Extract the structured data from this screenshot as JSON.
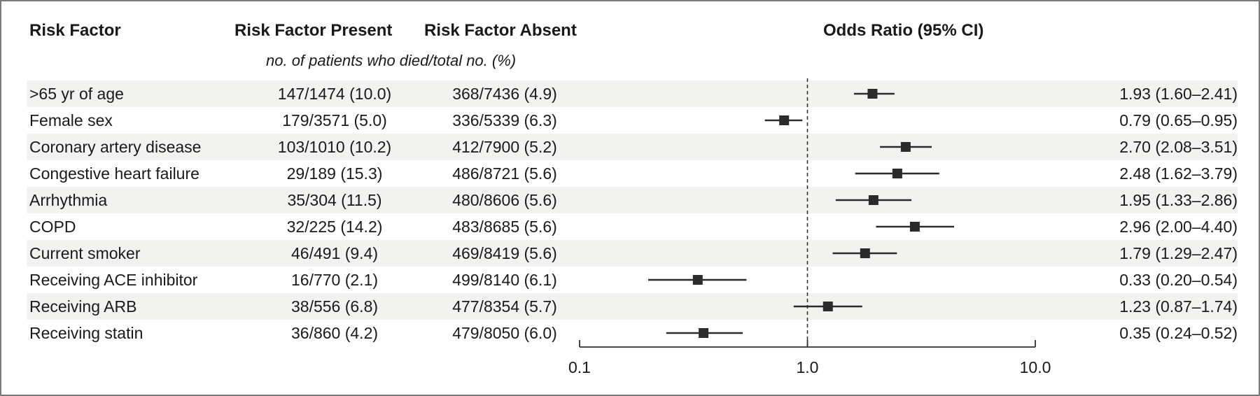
{
  "headers": {
    "risk_factor": "Risk Factor",
    "present": "Risk Factor Present",
    "absent": "Risk Factor Absent",
    "odds_ratio": "Odds Ratio (95% CI)",
    "subheader": "no. of patients who died/total no. (%)"
  },
  "rows": [
    {
      "name": ">65 yr of age",
      "present": "147/1474 (10.0)",
      "absent": "368/7436 (4.9)",
      "or_text": "1.93 (1.60–2.41)"
    },
    {
      "name": "Female sex",
      "present": "179/3571 (5.0)",
      "absent": "336/5339 (6.3)",
      "or_text": "0.79 (0.65–0.95)"
    },
    {
      "name": "Coronary artery disease",
      "present": "103/1010 (10.2)",
      "absent": "412/7900 (5.2)",
      "or_text": "2.70 (2.08–3.51)"
    },
    {
      "name": "Congestive heart failure",
      "present": "29/189 (15.3)",
      "absent": "486/8721 (5.6)",
      "or_text": "2.48 (1.62–3.79)"
    },
    {
      "name": "Arrhythmia",
      "present": "35/304 (11.5)",
      "absent": "480/8606 (5.6)",
      "or_text": "1.95 (1.33–2.86)"
    },
    {
      "name": "COPD",
      "present": "32/225 (14.2)",
      "absent": "483/8685 (5.6)",
      "or_text": "2.96 (2.00–4.40)"
    },
    {
      "name": "Current smoker",
      "present": "46/491 (9.4)",
      "absent": "469/8419 (5.6)",
      "or_text": "1.79 (1.29–2.47)"
    },
    {
      "name": "Receiving ACE inhibitor",
      "present": "16/770 (2.1)",
      "absent": "499/8140 (6.1)",
      "or_text": "0.33 (0.20–0.54)"
    },
    {
      "name": "Receiving ARB",
      "present": "38/556 (6.8)",
      "absent": "477/8354 (5.7)",
      "or_text": "1.23 (0.87–1.74)"
    },
    {
      "name": "Receiving statin",
      "present": "36/860 (4.2)",
      "absent": "479/8050 (6.0)",
      "or_text": "0.35 (0.24–0.52)"
    }
  ],
  "chart_data": {
    "type": "forest",
    "x_scale": "log",
    "xlim": [
      0.1,
      10.0
    ],
    "reference_line": 1.0,
    "ticks": [
      "0.1",
      "1.0",
      "10.0"
    ],
    "tick_values": [
      0.1,
      1.0,
      10.0
    ],
    "points": [
      {
        "label": ">65 yr of age",
        "or": 1.93,
        "lo": 1.6,
        "hi": 2.41
      },
      {
        "label": "Female sex",
        "or": 0.79,
        "lo": 0.65,
        "hi": 0.95
      },
      {
        "label": "Coronary artery disease",
        "or": 2.7,
        "lo": 2.08,
        "hi": 3.51
      },
      {
        "label": "Congestive heart failure",
        "or": 2.48,
        "lo": 1.62,
        "hi": 3.79
      },
      {
        "label": "Arrhythmia",
        "or": 1.95,
        "lo": 1.33,
        "hi": 2.86
      },
      {
        "label": "COPD",
        "or": 2.96,
        "lo": 2.0,
        "hi": 4.4
      },
      {
        "label": "Current smoker",
        "or": 1.79,
        "lo": 1.29,
        "hi": 2.47
      },
      {
        "label": "Receiving ACE inhibitor",
        "or": 0.33,
        "lo": 0.2,
        "hi": 0.54
      },
      {
        "label": "Receiving ARB",
        "or": 1.23,
        "lo": 0.87,
        "hi": 1.74
      },
      {
        "label": "Receiving statin",
        "or": 0.35,
        "lo": 0.24,
        "hi": 0.52
      }
    ],
    "colors": {
      "marker": "#2b2b2b",
      "row_shade": "#f2f2f0"
    }
  }
}
